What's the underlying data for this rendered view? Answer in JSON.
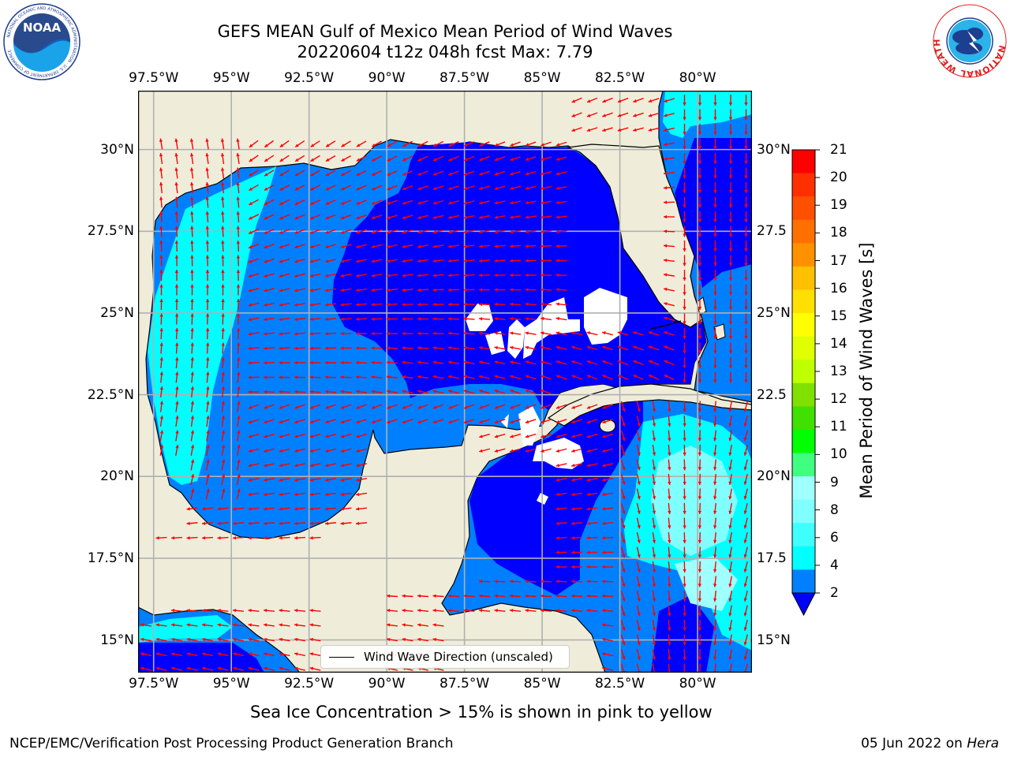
{
  "title_line1": "GEFS MEAN Gulf of Mexico Mean Period of Wind Waves",
  "title_line2": "20220604 t12z 048h fcst   Max: 7.79",
  "logos": {
    "left": {
      "icon": "noaa-logo-icon",
      "text": "NOAA",
      "ring_text": "NATIONAL OCEANIC AND ATMOSPHERIC ADMINISTRATION · U.S. DEPARTMENT OF COMMERCE"
    },
    "right": {
      "icon": "nws-logo-icon",
      "ring_text": "NATIONAL WEATHER SERVICE"
    }
  },
  "map": {
    "lon_ticks_top": [
      "97.5°W",
      "95°W",
      "92.5°W",
      "90°W",
      "87.5°W",
      "85°W",
      "82.5°W",
      "80°W"
    ],
    "lon_ticks_bottom": [
      "97.5°W",
      "95°W",
      "92.5°W",
      "90°W",
      "87.5°W",
      "85°W",
      "82.5°W",
      "80°W"
    ],
    "lat_ticks_left": [
      "30°N",
      "27.5°N",
      "25°N",
      "22.5°N",
      "20°N",
      "17.5°N",
      "15°N"
    ],
    "lat_ticks_right": [
      "30°N",
      "27.5",
      "25°N",
      "22.5",
      "20°N",
      "17.5",
      "15°N"
    ],
    "extent": {
      "lon_min": -98,
      "lon_max": -78.25,
      "lat_min": 14,
      "lat_max": 31.8
    },
    "legend_entry": "Wind Wave Direction (unscaled)",
    "colors": {
      "land": "#efedda",
      "coast": "#000000",
      "grid": "#b0b0b0",
      "arrows": "#ff0000",
      "period_2_4": "#0000ff",
      "period_4_6": "#0080ff",
      "period_6_8": "#00ffff"
    }
  },
  "colorbar": {
    "title": "Mean Period of Wind Waves [s]",
    "labels": [
      "21",
      "20",
      "19",
      "18",
      "17",
      "16",
      "15",
      "14",
      "13",
      "12",
      "11",
      "10",
      "9",
      "8",
      "6",
      "4",
      "2"
    ],
    "level_colors": [
      "#0080ff",
      "#00ffff",
      "#40ffff",
      "#80ffff",
      "#a0ffff",
      "#40ff80",
      "#00ff00",
      "#40e000",
      "#80e000",
      "#c0ff00",
      "#e0ff00",
      "#ffff00",
      "#ffe000",
      "#ffc000",
      "#ff9000",
      "#ff7000",
      "#ff5000",
      "#ff3000",
      "#ff0000"
    ],
    "extend_min_color": "#0000ff"
  },
  "ice_note": "Sea Ice Concentration > 15% is shown in pink to yellow",
  "footer": {
    "left": "NCEP/EMC/Verification Post Processing Product Generation Branch",
    "date": "05 Jun 2022 on ",
    "host": "Hera"
  }
}
